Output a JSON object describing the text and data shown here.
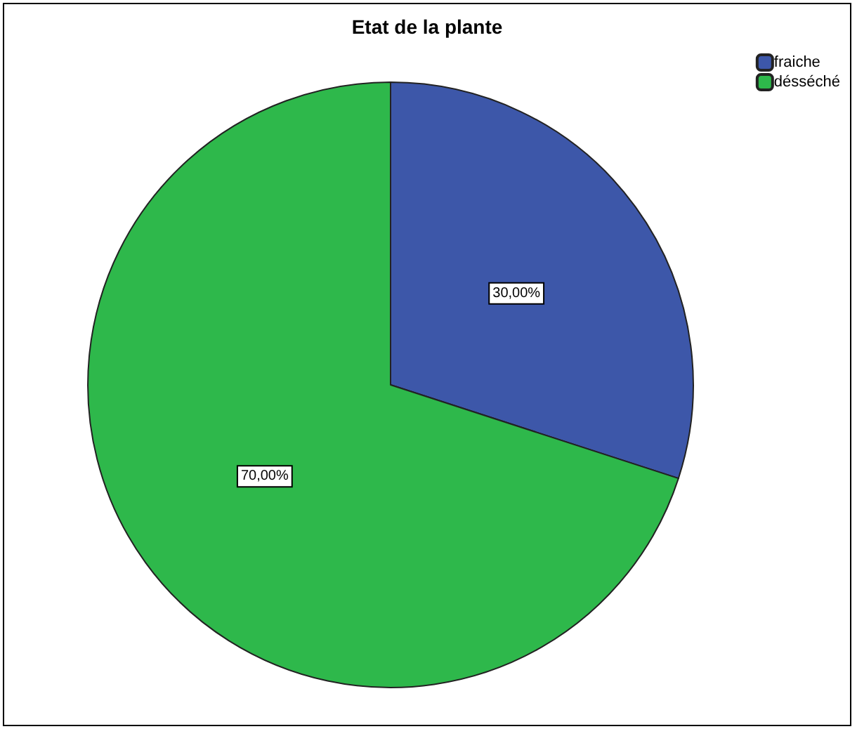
{
  "chart_data": {
    "type": "pie",
    "title": "Etat de la plante",
    "categories": [
      "fraiche",
      "désséché"
    ],
    "values": [
      30,
      70
    ],
    "colors": [
      "#3d57a9",
      "#2eb84b"
    ],
    "value_labels": [
      "30,00%",
      "70,00%"
    ],
    "legend": "top right"
  }
}
